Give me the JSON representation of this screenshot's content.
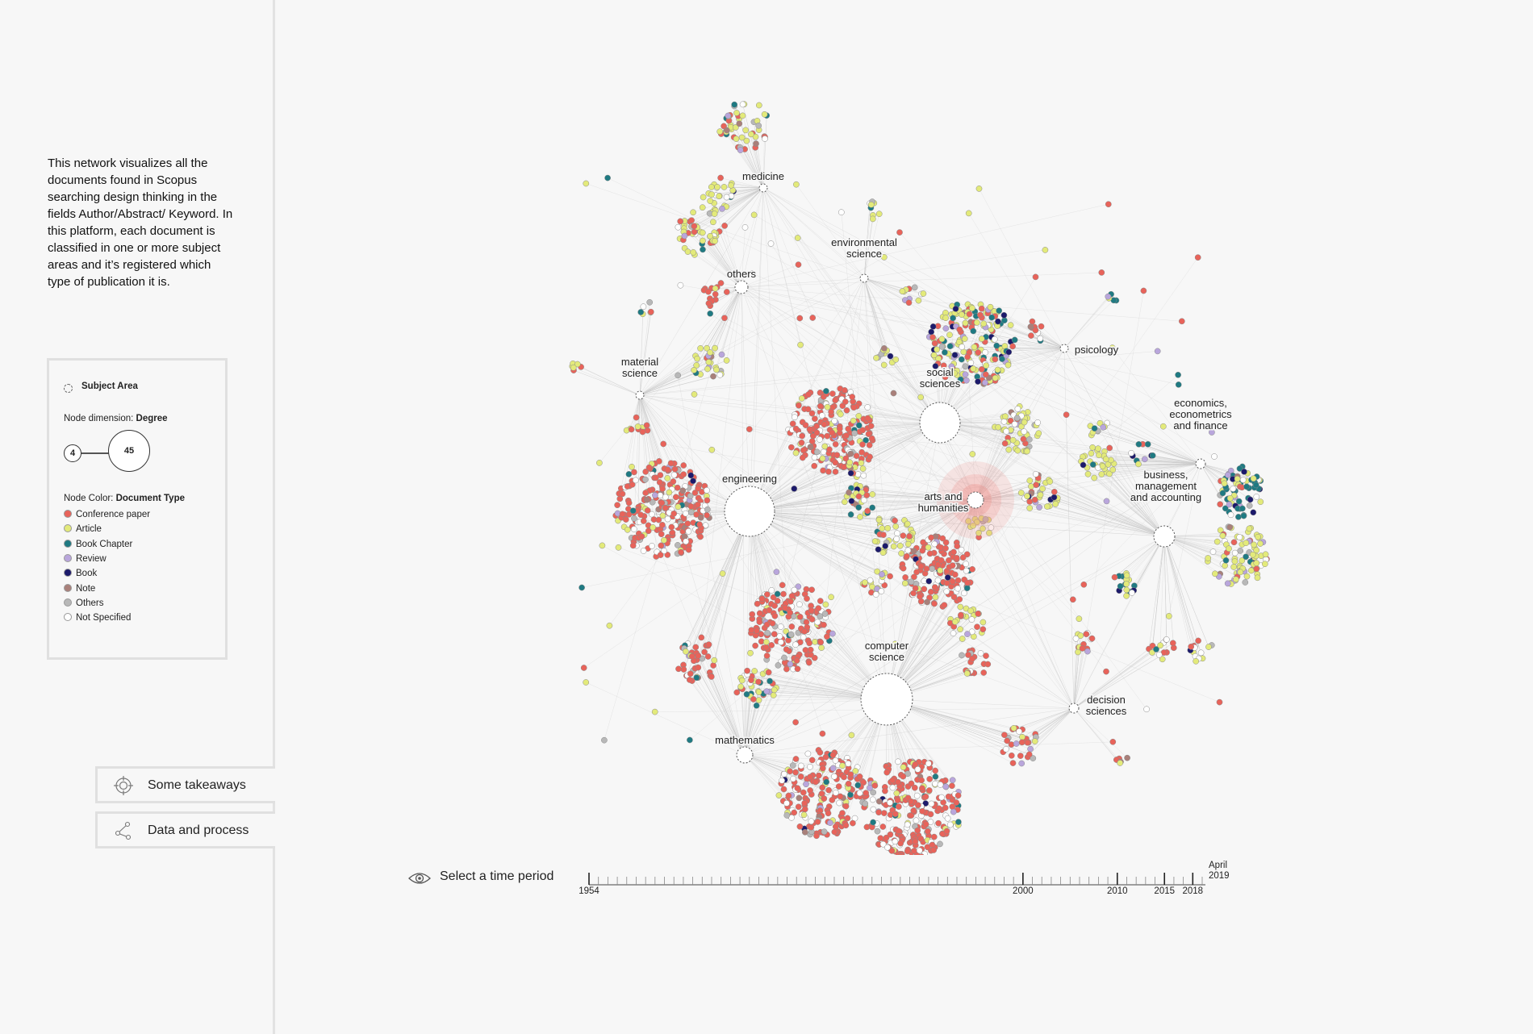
{
  "sidebar": {
    "intro": "This network visualizes all the documents found in Scopus searching design thinking in the fields Author/Abstract/ Keyword. In this platform, each document is classified in one or more subject areas and it’s registered which type of publication it is.",
    "legend": {
      "subject_area_label": "Subject Area",
      "node_dimension_label": "Node dimension:",
      "node_dimension_value": "Degree",
      "degree_min": "4",
      "degree_max": "45",
      "node_color_label": "Node Color:",
      "node_color_value": "Document Type",
      "doc_types": [
        {
          "label": "Conference paper",
          "color": "#e8635a"
        },
        {
          "label": "Article",
          "color": "#e3ea7a"
        },
        {
          "label": "Book Chapter",
          "color": "#1f7a82"
        },
        {
          "label": "Review",
          "color": "#b9a6dc"
        },
        {
          "label": "Book",
          "color": "#1c1a6b"
        },
        {
          "label": "Note",
          "color": "#a9807a"
        },
        {
          "label": "Others",
          "color": "#b8b8b8"
        },
        {
          "label": "Not Specified",
          "color": "#ffffff"
        }
      ]
    },
    "buttons": {
      "takeaways": "Some takeaways",
      "data_process": "Data and process"
    }
  },
  "network": {
    "hubs": [
      {
        "id": "medicine",
        "lines": [
          "medicine"
        ],
        "size": "small"
      },
      {
        "id": "others",
        "lines": [
          "others"
        ],
        "size": "small"
      },
      {
        "id": "environmental-science",
        "lines": [
          "environmental",
          "science"
        ],
        "size": "small"
      },
      {
        "id": "material-science",
        "lines": [
          "material",
          "science"
        ],
        "size": "small"
      },
      {
        "id": "psicology",
        "lines": [
          "psicology"
        ],
        "size": "small"
      },
      {
        "id": "social-sciences",
        "lines": [
          "social",
          "sciences"
        ],
        "size": "large"
      },
      {
        "id": "economics",
        "lines": [
          "economics,",
          "econometrics",
          "and finance"
        ],
        "size": "small"
      },
      {
        "id": "engineering",
        "lines": [
          "engineering"
        ],
        "size": "large"
      },
      {
        "id": "arts-and-humanities",
        "lines": [
          "arts and",
          "humanities"
        ],
        "size": "small",
        "highlighted": true
      },
      {
        "id": "business",
        "lines": [
          "business,",
          "management",
          "and accounting"
        ],
        "size": "medium"
      },
      {
        "id": "computer-science",
        "lines": [
          "computer",
          "science"
        ],
        "size": "large"
      },
      {
        "id": "decision-sciences",
        "lines": [
          "decision",
          "sciences"
        ],
        "size": "small"
      },
      {
        "id": "mathematics",
        "lines": [
          "mathematics"
        ],
        "size": "small"
      }
    ]
  },
  "timeline": {
    "label": "Select a time period",
    "start_year": "1954",
    "marks": [
      {
        "year": "2000",
        "label": "2000"
      },
      {
        "year": "2010",
        "label": "2010"
      },
      {
        "year": "2015",
        "label": "2015"
      },
      {
        "year": "2018",
        "label": "2018"
      }
    ],
    "end_month": "April",
    "end_year": "2019"
  }
}
